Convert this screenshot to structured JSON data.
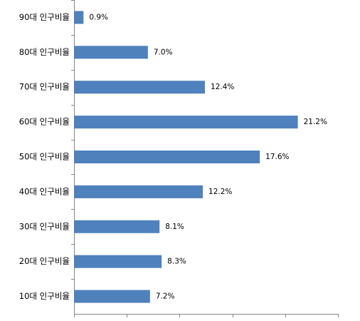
{
  "chart_data": {
    "type": "bar",
    "orientation": "horizontal",
    "categories": [
      "90대 인구비율",
      "80대 인구비율",
      "70대 인구비율",
      "60대 인구비율",
      "50대 인구비율",
      "40대 인구비율",
      "30대 인구비율",
      "20대 인구비율",
      "10대 인구비율"
    ],
    "values": [
      0.9,
      7.0,
      12.4,
      21.2,
      17.6,
      12.2,
      8.1,
      8.3,
      7.2
    ],
    "value_labels": [
      "0.9%",
      "7.0%",
      "12.4%",
      "21.2%",
      "17.6%",
      "12.2%",
      "8.1%",
      "8.3%",
      "7.2%"
    ],
    "color": "#4f81bd",
    "xlim": [
      0,
      25
    ],
    "xticks": [
      0,
      5,
      10,
      15,
      20,
      25
    ],
    "grid": false
  }
}
